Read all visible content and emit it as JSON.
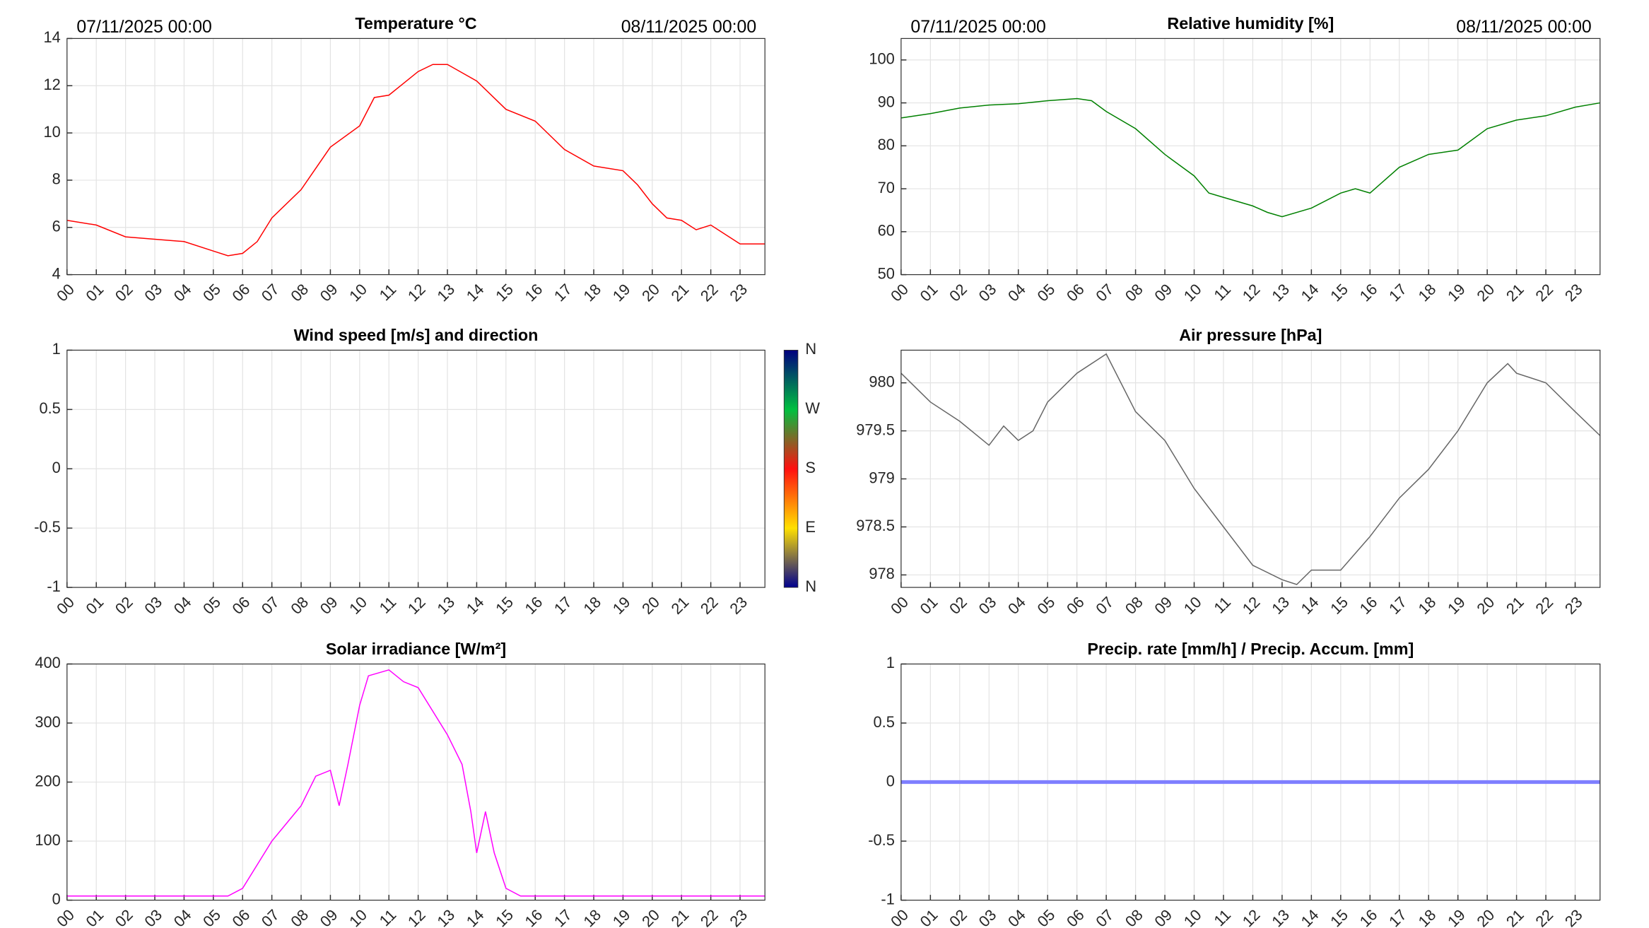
{
  "chart_data": [
    {
      "type": "line",
      "title": "Temperature °C",
      "annotations": [
        "07/11/2025 00:00",
        "08/11/2025 00:00"
      ],
      "x": [
        0,
        1,
        2,
        3,
        4,
        5,
        5.5,
        6,
        6.5,
        7,
        8,
        9,
        10,
        10.5,
        11,
        12,
        12.5,
        13,
        14,
        15,
        16,
        17,
        18,
        19,
        19.5,
        20,
        20.5,
        21,
        21.5,
        22,
        23,
        23.85
      ],
      "series": [
        {
          "color": "#ff0000",
          "values": [
            6.3,
            6.1,
            5.6,
            5.5,
            5.4,
            5.0,
            4.8,
            4.9,
            5.4,
            6.4,
            7.6,
            9.4,
            10.3,
            11.5,
            11.6,
            12.6,
            12.9,
            12.9,
            12.2,
            11.0,
            10.5,
            9.3,
            8.6,
            8.4,
            7.8,
            7.0,
            6.4,
            6.3,
            5.9,
            6.1,
            5.3,
            5.3
          ]
        }
      ],
      "xlim": [
        0,
        23.85
      ],
      "ylim": [
        4,
        14
      ],
      "yticks": [
        4,
        6,
        8,
        10,
        12,
        14
      ],
      "grid": true,
      "xticks": [
        {
          "value": 0,
          "label": "00"
        },
        {
          "value": 1,
          "label": "01"
        },
        {
          "value": 2,
          "label": "02"
        },
        {
          "value": 3,
          "label": "03"
        },
        {
          "value": 4,
          "label": "04"
        },
        {
          "value": 5,
          "label": "05"
        },
        {
          "value": 6,
          "label": "06"
        },
        {
          "value": 7,
          "label": "07"
        },
        {
          "value": 8,
          "label": "08"
        },
        {
          "value": 9,
          "label": "09"
        },
        {
          "value": 10,
          "label": "10"
        },
        {
          "value": 11,
          "label": "11"
        },
        {
          "value": 12,
          "label": "12"
        },
        {
          "value": 13,
          "label": "13"
        },
        {
          "value": 14,
          "label": "14"
        },
        {
          "value": 15,
          "label": "15"
        },
        {
          "value": 16,
          "label": "16"
        },
        {
          "value": 17,
          "label": "17"
        },
        {
          "value": 18,
          "label": "18"
        },
        {
          "value": 19,
          "label": "19"
        },
        {
          "value": 20,
          "label": "20"
        },
        {
          "value": 21,
          "label": "21"
        },
        {
          "value": 22,
          "label": "22"
        },
        {
          "value": 23,
          "label": "23"
        }
      ]
    },
    {
      "type": "line",
      "title": "Relative humidity [%]",
      "annotations": [
        "07/11/2025 00:00",
        "08/11/2025 00:00"
      ],
      "x": [
        0,
        1,
        2,
        3,
        4,
        5,
        6,
        6.5,
        7,
        8,
        9,
        10,
        10.5,
        11,
        12,
        12.5,
        13,
        14,
        15,
        15.5,
        16,
        17,
        18,
        19,
        20,
        21,
        22,
        23,
        23.85
      ],
      "series": [
        {
          "color": "#008000",
          "values": [
            86.5,
            87.5,
            88.8,
            89.5,
            89.8,
            90.5,
            91,
            90.5,
            88,
            84,
            78,
            73,
            69,
            68,
            66,
            64.5,
            63.5,
            65.5,
            69,
            70,
            69,
            75,
            78,
            79,
            84,
            86,
            87,
            89,
            90
          ]
        }
      ],
      "xlim": [
        0,
        23.85
      ],
      "ylim": [
        50,
        105
      ],
      "yticks": [
        50,
        60,
        70,
        80,
        90,
        100
      ],
      "grid": true,
      "xticks": [
        {
          "value": 0,
          "label": "00"
        },
        {
          "value": 1,
          "label": "01"
        },
        {
          "value": 2,
          "label": "02"
        },
        {
          "value": 3,
          "label": "03"
        },
        {
          "value": 4,
          "label": "04"
        },
        {
          "value": 5,
          "label": "05"
        },
        {
          "value": 6,
          "label": "06"
        },
        {
          "value": 7,
          "label": "07"
        },
        {
          "value": 8,
          "label": "08"
        },
        {
          "value": 9,
          "label": "09"
        },
        {
          "value": 10,
          "label": "10"
        },
        {
          "value": 11,
          "label": "11"
        },
        {
          "value": 12,
          "label": "12"
        },
        {
          "value": 13,
          "label": "13"
        },
        {
          "value": 14,
          "label": "14"
        },
        {
          "value": 15,
          "label": "15"
        },
        {
          "value": 16,
          "label": "16"
        },
        {
          "value": 17,
          "label": "17"
        },
        {
          "value": 18,
          "label": "18"
        },
        {
          "value": 19,
          "label": "19"
        },
        {
          "value": 20,
          "label": "20"
        },
        {
          "value": 21,
          "label": "21"
        },
        {
          "value": 22,
          "label": "22"
        },
        {
          "value": 23,
          "label": "23"
        }
      ]
    },
    {
      "type": "line",
      "title": "Wind speed [m/s] and direction",
      "colorbar": [
        "N",
        "W",
        "S",
        "E",
        "N"
      ],
      "series": [],
      "xlim": [
        0,
        23.85
      ],
      "ylim": [
        -1,
        1
      ],
      "yticks": [
        -1,
        -0.5,
        0,
        0.5,
        1
      ],
      "grid": true,
      "xticks": [
        {
          "value": 0,
          "label": "00"
        },
        {
          "value": 1,
          "label": "01"
        },
        {
          "value": 2,
          "label": "02"
        },
        {
          "value": 3,
          "label": "03"
        },
        {
          "value": 4,
          "label": "04"
        },
        {
          "value": 5,
          "label": "05"
        },
        {
          "value": 6,
          "label": "06"
        },
        {
          "value": 7,
          "label": "07"
        },
        {
          "value": 8,
          "label": "08"
        },
        {
          "value": 9,
          "label": "09"
        },
        {
          "value": 10,
          "label": "10"
        },
        {
          "value": 11,
          "label": "11"
        },
        {
          "value": 12,
          "label": "12"
        },
        {
          "value": 13,
          "label": "13"
        },
        {
          "value": 14,
          "label": "14"
        },
        {
          "value": 15,
          "label": "15"
        },
        {
          "value": 16,
          "label": "16"
        },
        {
          "value": 17,
          "label": "17"
        },
        {
          "value": 18,
          "label": "18"
        },
        {
          "value": 19,
          "label": "19"
        },
        {
          "value": 20,
          "label": "20"
        },
        {
          "value": 21,
          "label": "21"
        },
        {
          "value": 22,
          "label": "22"
        },
        {
          "value": 23,
          "label": "23"
        }
      ]
    },
    {
      "type": "line",
      "title": "Air pressure [hPa]",
      "x": [
        0,
        0.5,
        1,
        2,
        3,
        3.5,
        4,
        4.5,
        5,
        6,
        7,
        8,
        9,
        10,
        11,
        12,
        13,
        13.5,
        14,
        15,
        16,
        17,
        18,
        19,
        20,
        20.7,
        21,
        22,
        23,
        23.85
      ],
      "series": [
        {
          "color": "#666666",
          "values": [
            980.1,
            979.95,
            979.8,
            979.6,
            979.35,
            979.55,
            979.4,
            979.5,
            979.8,
            980.1,
            980.3,
            979.7,
            979.4,
            978.9,
            978.5,
            978.1,
            977.95,
            977.9,
            978.05,
            978.05,
            978.4,
            978.8,
            979.1,
            979.5,
            980.0,
            980.2,
            980.1,
            980.0,
            979.7,
            979.45
          ]
        }
      ],
      "xlim": [
        0,
        23.85
      ],
      "ylim": [
        977.87,
        980.34
      ],
      "yticks": [
        978,
        978.5,
        979,
        979.5,
        980
      ],
      "grid": true,
      "xticks": [
        {
          "value": 0,
          "label": "00"
        },
        {
          "value": 1,
          "label": "01"
        },
        {
          "value": 2,
          "label": "02"
        },
        {
          "value": 3,
          "label": "03"
        },
        {
          "value": 4,
          "label": "04"
        },
        {
          "value": 5,
          "label": "05"
        },
        {
          "value": 6,
          "label": "06"
        },
        {
          "value": 7,
          "label": "07"
        },
        {
          "value": 8,
          "label": "08"
        },
        {
          "value": 9,
          "label": "09"
        },
        {
          "value": 10,
          "label": "10"
        },
        {
          "value": 11,
          "label": "11"
        },
        {
          "value": 12,
          "label": "12"
        },
        {
          "value": 13,
          "label": "13"
        },
        {
          "value": 14,
          "label": "14"
        },
        {
          "value": 15,
          "label": "15"
        },
        {
          "value": 16,
          "label": "16"
        },
        {
          "value": 17,
          "label": "17"
        },
        {
          "value": 18,
          "label": "18"
        },
        {
          "value": 19,
          "label": "19"
        },
        {
          "value": 20,
          "label": "20"
        },
        {
          "value": 21,
          "label": "21"
        },
        {
          "value": 22,
          "label": "22"
        },
        {
          "value": 23,
          "label": "23"
        }
      ]
    },
    {
      "type": "line",
      "title": "Solar irradiance [W/m²]",
      "x": [
        0,
        5.5,
        6,
        6.5,
        7,
        7.5,
        8,
        8.5,
        9,
        9.3,
        9.6,
        10,
        10.3,
        11,
        11.5,
        12,
        13,
        13.5,
        13.8,
        14,
        14.3,
        14.6,
        15,
        15.5,
        23.85
      ],
      "series": [
        {
          "color": "#ff00ff",
          "values": [
            7,
            7,
            20,
            60,
            100,
            130,
            160,
            210,
            220,
            160,
            230,
            330,
            380,
            390,
            370,
            360,
            280,
            230,
            150,
            80,
            150,
            80,
            20,
            7,
            7
          ]
        }
      ],
      "xlim": [
        0,
        23.85
      ],
      "ylim": [
        0,
        400
      ],
      "yticks": [
        0,
        100,
        200,
        300,
        400
      ],
      "grid": true,
      "xticks": [
        {
          "value": 0,
          "label": "00"
        },
        {
          "value": 1,
          "label": "01"
        },
        {
          "value": 2,
          "label": "02"
        },
        {
          "value": 3,
          "label": "03"
        },
        {
          "value": 4,
          "label": "04"
        },
        {
          "value": 5,
          "label": "05"
        },
        {
          "value": 6,
          "label": "06"
        },
        {
          "value": 7,
          "label": "07"
        },
        {
          "value": 8,
          "label": "08"
        },
        {
          "value": 9,
          "label": "09"
        },
        {
          "value": 10,
          "label": "10"
        },
        {
          "value": 11,
          "label": "11"
        },
        {
          "value": 12,
          "label": "12"
        },
        {
          "value": 13,
          "label": "13"
        },
        {
          "value": 14,
          "label": "14"
        },
        {
          "value": 15,
          "label": "15"
        },
        {
          "value": 16,
          "label": "16"
        },
        {
          "value": 17,
          "label": "17"
        },
        {
          "value": 18,
          "label": "18"
        },
        {
          "value": 19,
          "label": "19"
        },
        {
          "value": 20,
          "label": "20"
        },
        {
          "value": 21,
          "label": "21"
        },
        {
          "value": 22,
          "label": "22"
        },
        {
          "value": 23,
          "label": "23"
        }
      ]
    },
    {
      "type": "line",
      "title": "Precip. rate [mm/h] / Precip. Accum. [mm]",
      "x": [
        0,
        23.85
      ],
      "series": [
        {
          "color": "#7f7fff",
          "values": [
            0,
            0
          ]
        }
      ],
      "xlim": [
        0,
        23.85
      ],
      "ylim": [
        -1,
        1
      ],
      "yticks": [
        -1,
        -0.5,
        0,
        0.5,
        1
      ],
      "grid": true,
      "xticks": [
        {
          "value": 0,
          "label": "00"
        },
        {
          "value": 1,
          "label": "01"
        },
        {
          "value": 2,
          "label": "02"
        },
        {
          "value": 3,
          "label": "03"
        },
        {
          "value": 4,
          "label": "04"
        },
        {
          "value": 5,
          "label": "05"
        },
        {
          "value": 6,
          "label": "06"
        },
        {
          "value": 7,
          "label": "07"
        },
        {
          "value": 8,
          "label": "08"
        },
        {
          "value": 9,
          "label": "09"
        },
        {
          "value": 10,
          "label": "10"
        },
        {
          "value": 11,
          "label": "11"
        },
        {
          "value": 12,
          "label": "12"
        },
        {
          "value": 13,
          "label": "13"
        },
        {
          "value": 14,
          "label": "14"
        },
        {
          "value": 15,
          "label": "15"
        },
        {
          "value": 16,
          "label": "16"
        },
        {
          "value": 17,
          "label": "17"
        },
        {
          "value": 18,
          "label": "18"
        },
        {
          "value": 19,
          "label": "19"
        },
        {
          "value": 20,
          "label": "20"
        },
        {
          "value": 21,
          "label": "21"
        },
        {
          "value": 22,
          "label": "22"
        },
        {
          "value": 23,
          "label": "23"
        }
      ]
    }
  ]
}
